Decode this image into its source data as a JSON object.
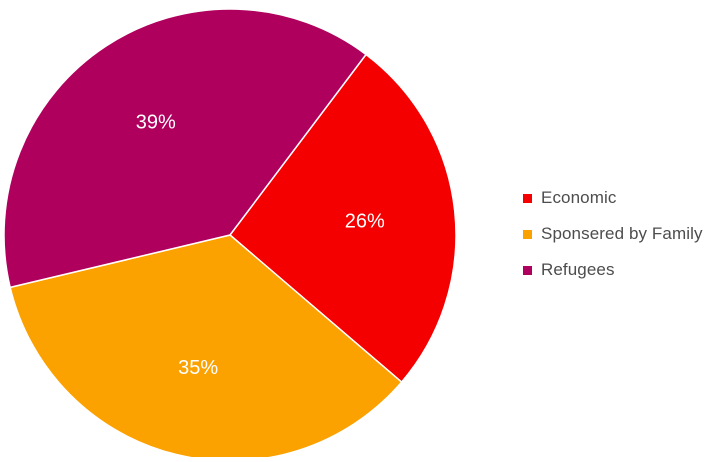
{
  "chart_data": {
    "type": "pie",
    "title": "",
    "categories": [
      "Economic",
      "Sponsered by Family",
      "Refugees"
    ],
    "values": [
      26,
      35,
      39
    ],
    "labels": [
      "26%",
      "35%",
      "39%"
    ],
    "colors": [
      "#f50000",
      "#fba100",
      "#b0005e"
    ],
    "start_angle_deg": -53,
    "legend_position": "right"
  },
  "legend": {
    "items": [
      {
        "label": "Economic",
        "color": "#f50000"
      },
      {
        "label": "Sponsered by Family",
        "color": "#fba100"
      },
      {
        "label": "Refugees",
        "color": "#b0005e"
      }
    ]
  }
}
